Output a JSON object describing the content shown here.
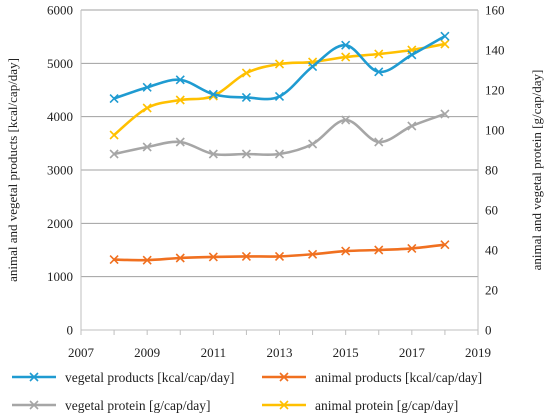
{
  "chart_data": {
    "type": "line",
    "title": "",
    "xlabel": "",
    "ylabel": "animal and vegetal products [kcal/cap/day]",
    "y2label": "animal and vegetal protein [g/cap/day]",
    "xlim": [
      2007,
      2019
    ],
    "ylim": [
      0,
      6000
    ],
    "y2lim": [
      0,
      160
    ],
    "x_ticks": [
      "2007",
      "2009",
      "2011",
      "2013",
      "2015",
      "2017",
      "2019"
    ],
    "y_ticks": [
      "0",
      "1000",
      "2000",
      "3000",
      "4000",
      "5000",
      "6000"
    ],
    "y2_ticks": [
      "0",
      "20",
      "40",
      "60",
      "80",
      "100",
      "120",
      "140",
      "160"
    ],
    "grid": "horizontal",
    "legend_position": "bottom",
    "x": [
      2008,
      2009,
      2010,
      2011,
      2012,
      2013,
      2014,
      2015,
      2016,
      2017,
      2018
    ],
    "series": [
      {
        "name": "vegetal products [kcal/cap/day]",
        "axis": "left",
        "color": "#1f9bd1",
        "values": [
          4340,
          4550,
          4690,
          4420,
          4360,
          4380,
          4940,
          5340,
          4840,
          5160,
          5510
        ]
      },
      {
        "name": "animal products [kcal/cap/day]",
        "axis": "left",
        "color": "#f07020",
        "values": [
          1320,
          1310,
          1350,
          1370,
          1380,
          1380,
          1420,
          1480,
          1500,
          1530,
          1600
        ]
      },
      {
        "name": "vegetal protein [g/cap/day]",
        "axis": "right",
        "color": "#a6a6a6",
        "values": [
          88,
          91.5,
          94,
          88,
          88,
          88,
          93,
          105,
          94,
          102,
          108
        ]
      },
      {
        "name": "animal protein [g/cap/day]",
        "axis": "right",
        "color": "#ffc000",
        "values": [
          97.5,
          111,
          115,
          117,
          128.5,
          133,
          134,
          136.5,
          138,
          140,
          143
        ]
      }
    ]
  }
}
